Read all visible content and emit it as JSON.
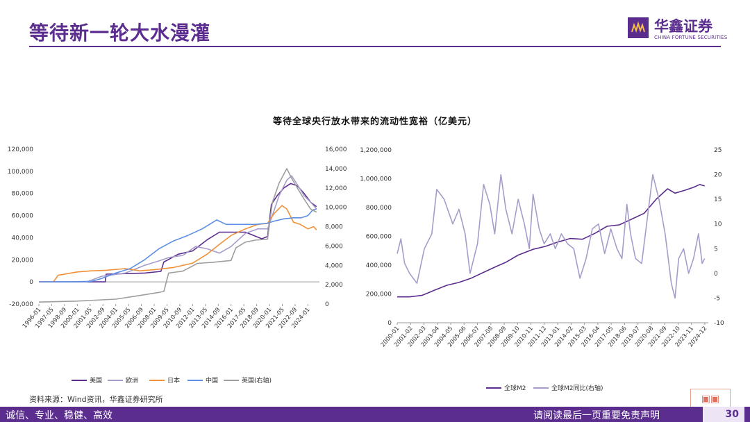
{
  "header": {
    "title": "等待新一轮大水漫灌"
  },
  "logo": {
    "cn": "华鑫证券",
    "en": "CHINA FORTUNE SECURITIES"
  },
  "chart_title": "等待全球央行放水带来的流动性宽裕（亿美元）",
  "source": "资料来源：Wind资讯，华鑫证券研究所",
  "footer": {
    "left": "诚信、专业、稳健、高效",
    "right": "请阅读最后一页重要免责声明",
    "page": "30"
  },
  "colors": {
    "brand": "#5b2d8e",
    "us": "#5b2d8e",
    "eu": "#a79cc9",
    "jp": "#f0913a",
    "cn": "#5b8fe6",
    "uk": "#9e9e9e",
    "m2": "#5b2d8e",
    "m2yoy": "#a79cc9"
  },
  "chart_data": [
    {
      "type": "line",
      "title": "",
      "x_ticks": [
        "1996-01",
        "1997-05",
        "1998-09",
        "2000-01",
        "2001-05",
        "2002-09",
        "2004-01",
        "2005-05",
        "2006-09",
        "2008-01",
        "2009-05",
        "2010-09",
        "2012-01",
        "2013-05",
        "2014-09",
        "2016-01",
        "2017-05",
        "2018-09",
        "2020-01",
        "2021-05",
        "2022-09",
        "2024-01"
      ],
      "ylim_left": [
        -20000,
        120000
      ],
      "ylim_right": [
        0,
        16000
      ],
      "y_ticks_left": [
        "-20,000",
        "0",
        "20,000",
        "40,000",
        "60,000",
        "80,000",
        "100,000",
        "120,000"
      ],
      "y_ticks_right": [
        "0",
        "2,000",
        "4,000",
        "6,000",
        "8,000",
        "10,000",
        "12,000",
        "14,000",
        "16,000"
      ],
      "legend": "bottom",
      "series": [
        {
          "name": "美国",
          "axis": "left",
          "points": [
            [
              1996.0,
              0
            ],
            [
              2002.9,
              0
            ],
            [
              2003.0,
              7000
            ],
            [
              2007.0,
              8000
            ],
            [
              2008.7,
              9500
            ],
            [
              2009.0,
              18000
            ],
            [
              2010.5,
              25000
            ],
            [
              2012.0,
              28000
            ],
            [
              2013.5,
              38000
            ],
            [
              2014.8,
              45000
            ],
            [
              2017.5,
              45000
            ],
            [
              2019.2,
              39000
            ],
            [
              2019.8,
              41000
            ],
            [
              2020.2,
              70000
            ],
            [
              2020.8,
              78000
            ],
            [
              2021.5,
              85000
            ],
            [
              2022.2,
              89000
            ],
            [
              2022.9,
              87000
            ],
            [
              2023.6,
              80000
            ],
            [
              2024.3,
              72000
            ],
            [
              2024.9,
              68000
            ]
          ]
        },
        {
          "name": "欧洲",
          "axis": "left",
          "points": [
            [
              1996.0,
              0
            ],
            [
              2001.0,
              0
            ],
            [
              2002.5,
              5000
            ],
            [
              2005.0,
              8000
            ],
            [
              2007.0,
              15000
            ],
            [
              2008.5,
              19000
            ],
            [
              2009.5,
              22000
            ],
            [
              2011.0,
              24000
            ],
            [
              2012.3,
              32000
            ],
            [
              2013.5,
              30000
            ],
            [
              2014.8,
              26000
            ],
            [
              2016.0,
              32000
            ],
            [
              2017.5,
              44000
            ],
            [
              2018.8,
              48000
            ],
            [
              2019.8,
              48000
            ],
            [
              2020.3,
              60000
            ],
            [
              2021.0,
              78000
            ],
            [
              2021.8,
              92000
            ],
            [
              2022.3,
              96000
            ],
            [
              2022.9,
              88000
            ],
            [
              2023.6,
              78000
            ],
            [
              2024.3,
              72000
            ],
            [
              2024.9,
              66000
            ]
          ]
        },
        {
          "name": "日本",
          "axis": "left",
          "points": [
            [
              1996.0,
              0
            ],
            [
              1997.5,
              0
            ],
            [
              1998.0,
              6000
            ],
            [
              2000.0,
              9000
            ],
            [
              2001.5,
              10000
            ],
            [
              2003.0,
              10500
            ],
            [
              2005.0,
              12000
            ],
            [
              2006.5,
              10000
            ],
            [
              2008.0,
              11000
            ],
            [
              2010.0,
              13000
            ],
            [
              2012.0,
              17000
            ],
            [
              2013.5,
              25000
            ],
            [
              2014.8,
              34000
            ],
            [
              2016.0,
              42000
            ],
            [
              2017.5,
              48000
            ],
            [
              2018.8,
              52000
            ],
            [
              2019.8,
              53000
            ],
            [
              2020.5,
              62000
            ],
            [
              2021.3,
              69000
            ],
            [
              2021.8,
              66000
            ],
            [
              2022.5,
              54000
            ],
            [
              2023.2,
              52000
            ],
            [
              2024.0,
              48000
            ],
            [
              2024.6,
              50000
            ],
            [
              2024.9,
              47000
            ]
          ]
        },
        {
          "name": "中国",
          "axis": "left",
          "points": [
            [
              1996.0,
              0
            ],
            [
              1999.0,
              0
            ],
            [
              2001.5,
              500
            ],
            [
              2002.5,
              3000
            ],
            [
              2004.0,
              8000
            ],
            [
              2005.5,
              12000
            ],
            [
              2007.0,
              20000
            ],
            [
              2008.5,
              30000
            ],
            [
              2010.0,
              37000
            ],
            [
              2011.5,
              42000
            ],
            [
              2013.0,
              48000
            ],
            [
              2014.5,
              56000
            ],
            [
              2015.5,
              52000
            ],
            [
              2017.0,
              52000
            ],
            [
              2018.5,
              52000
            ],
            [
              2019.8,
              53000
            ],
            [
              2020.5,
              55000
            ],
            [
              2021.5,
              57000
            ],
            [
              2022.5,
              58000
            ],
            [
              2023.3,
              58000
            ],
            [
              2024.0,
              60000
            ],
            [
              2024.5,
              65000
            ],
            [
              2024.9,
              66000
            ]
          ]
        },
        {
          "name": "英国(右轴)",
          "axis": "right",
          "points": [
            [
              1996.0,
              200
            ],
            [
              2000.0,
              300
            ],
            [
              2004.0,
              500
            ],
            [
              2006.0,
              800
            ],
            [
              2008.5,
              1200
            ],
            [
              2009.0,
              1300
            ],
            [
              2009.5,
              3200
            ],
            [
              2011.0,
              3400
            ],
            [
              2012.5,
              4200
            ],
            [
              2014.0,
              4300
            ],
            [
              2016.0,
              4500
            ],
            [
              2016.5,
              5800
            ],
            [
              2017.5,
              6400
            ],
            [
              2018.5,
              6600
            ],
            [
              2019.8,
              6700
            ],
            [
              2020.3,
              10500
            ],
            [
              2021.0,
              12500
            ],
            [
              2021.8,
              14000
            ],
            [
              2022.3,
              13000
            ],
            [
              2022.9,
              12000
            ],
            [
              2023.5,
              11000
            ],
            [
              2024.3,
              9800
            ],
            [
              2024.9,
              9500
            ]
          ]
        }
      ]
    },
    {
      "type": "line",
      "title": "",
      "x_ticks": [
        "2000-01",
        "2001-02",
        "2002-03",
        "2003-04",
        "2004-05",
        "2005-06",
        "2006-07",
        "2007-08",
        "2008-09",
        "2009-10",
        "2010-11",
        "2011-12",
        "2013-01",
        "2014-02",
        "2015-03",
        "2016-04",
        "2017-05",
        "2018-06",
        "2019-07",
        "2020-08",
        "2021-09",
        "2022-10",
        "2023-11",
        "2024-12"
      ],
      "ylim_left": [
        0,
        1200000
      ],
      "ylim_right": [
        -10,
        25
      ],
      "y_ticks_left": [
        "0",
        "200,000",
        "400,000",
        "600,000",
        "800,000",
        "1,000,000",
        "1,200,000"
      ],
      "y_ticks_right": [
        "-10",
        "-5",
        "0",
        "5",
        "10",
        "15",
        "20",
        "25"
      ],
      "legend": "bottom",
      "series": [
        {
          "name": "全球M2",
          "axis": "left",
          "points": [
            [
              2000.0,
              180000
            ],
            [
              2001.0,
              180000
            ],
            [
              2002.0,
              190000
            ],
            [
              2003.0,
              225000
            ],
            [
              2004.0,
              260000
            ],
            [
              2005.0,
              280000
            ],
            [
              2006.0,
              310000
            ],
            [
              2007.0,
              350000
            ],
            [
              2008.0,
              390000
            ],
            [
              2008.8,
              420000
            ],
            [
              2009.8,
              470000
            ],
            [
              2011.0,
              510000
            ],
            [
              2012.0,
              530000
            ],
            [
              2013.0,
              560000
            ],
            [
              2014.0,
              585000
            ],
            [
              2015.0,
              580000
            ],
            [
              2016.0,
              620000
            ],
            [
              2017.0,
              670000
            ],
            [
              2018.0,
              680000
            ],
            [
              2019.0,
              720000
            ],
            [
              2020.0,
              760000
            ],
            [
              2021.0,
              860000
            ],
            [
              2021.9,
              930000
            ],
            [
              2022.5,
              900000
            ],
            [
              2023.3,
              920000
            ],
            [
              2024.0,
              940000
            ],
            [
              2024.5,
              960000
            ],
            [
              2024.9,
              950000
            ]
          ]
        },
        {
          "name": "全球M2同比(右轴)",
          "axis": "right",
          "points": [
            [
              2000.0,
              4
            ],
            [
              2000.3,
              7
            ],
            [
              2000.6,
              2
            ],
            [
              2001.0,
              0
            ],
            [
              2001.6,
              -2
            ],
            [
              2002.2,
              5
            ],
            [
              2002.8,
              8
            ],
            [
              2003.2,
              17
            ],
            [
              2003.8,
              15
            ],
            [
              2004.5,
              10
            ],
            [
              2005.0,
              13
            ],
            [
              2005.5,
              8
            ],
            [
              2005.9,
              0
            ],
            [
              2006.5,
              6
            ],
            [
              2007.0,
              18
            ],
            [
              2007.5,
              14
            ],
            [
              2007.9,
              8
            ],
            [
              2008.4,
              20
            ],
            [
              2008.8,
              13
            ],
            [
              2009.3,
              8
            ],
            [
              2009.8,
              15
            ],
            [
              2010.3,
              10
            ],
            [
              2010.7,
              5
            ],
            [
              2011.0,
              16
            ],
            [
              2011.5,
              9
            ],
            [
              2011.9,
              6
            ],
            [
              2012.4,
              8
            ],
            [
              2012.8,
              5
            ],
            [
              2013.3,
              8
            ],
            [
              2013.8,
              6
            ],
            [
              2014.3,
              5
            ],
            [
              2014.8,
              -1
            ],
            [
              2015.3,
              3
            ],
            [
              2015.8,
              9
            ],
            [
              2016.3,
              10
            ],
            [
              2016.8,
              4
            ],
            [
              2017.3,
              9
            ],
            [
              2017.8,
              5
            ],
            [
              2018.2,
              3
            ],
            [
              2018.6,
              14
            ],
            [
              2018.9,
              8
            ],
            [
              2019.3,
              3
            ],
            [
              2019.8,
              2
            ],
            [
              2020.3,
              12
            ],
            [
              2020.7,
              20
            ],
            [
              2021.2,
              15
            ],
            [
              2021.7,
              8
            ],
            [
              2022.2,
              -2
            ],
            [
              2022.5,
              -5
            ],
            [
              2022.8,
              3
            ],
            [
              2023.2,
              5
            ],
            [
              2023.6,
              0
            ],
            [
              2024.0,
              3
            ],
            [
              2024.4,
              8
            ],
            [
              2024.7,
              2
            ],
            [
              2024.9,
              3
            ]
          ]
        }
      ]
    }
  ]
}
